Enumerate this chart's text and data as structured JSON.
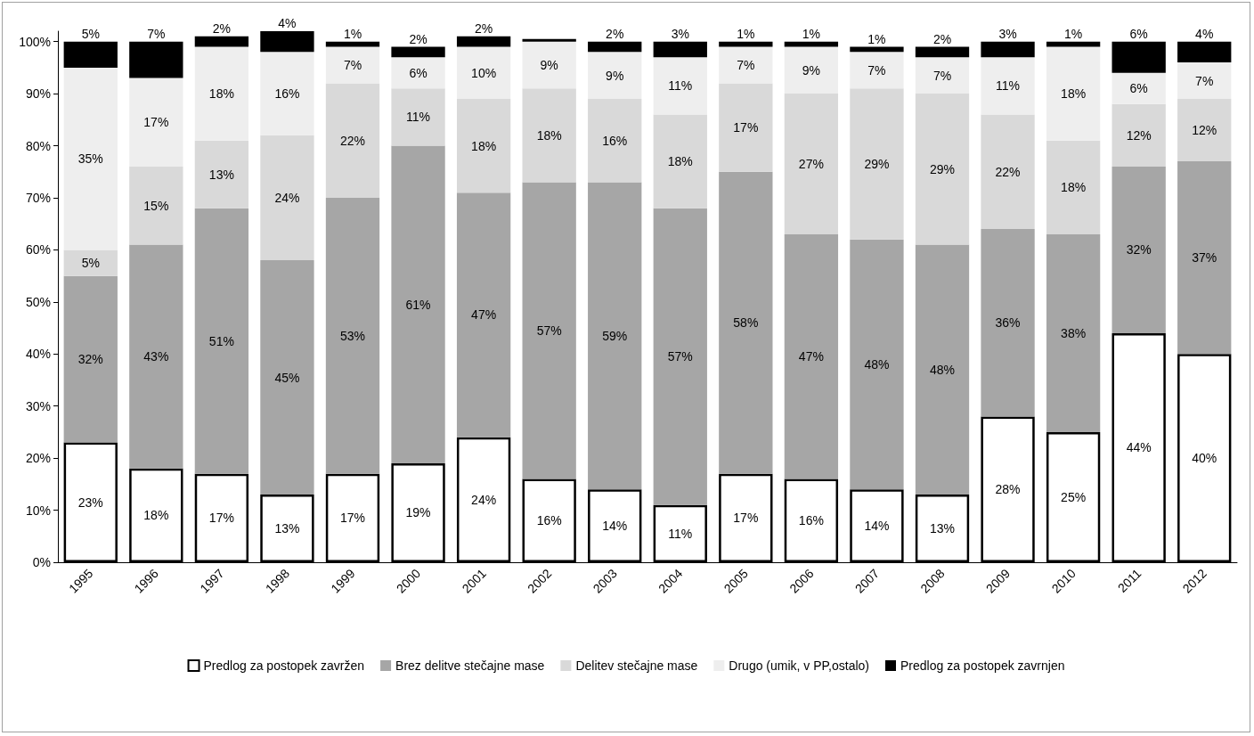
{
  "chart_data": {
    "type": "bar",
    "stacked": true,
    "categories": [
      "1995",
      "1996",
      "1997",
      "1998",
      "1999",
      "2000",
      "2001",
      "2002",
      "2003",
      "2004",
      "2005",
      "2006",
      "2007",
      "2008",
      "2009",
      "2010",
      "2011",
      "2012"
    ],
    "series": [
      {
        "name": "Predlog za postopek zavržen",
        "color": "#ffffff",
        "values": [
          23,
          18,
          17,
          13,
          17,
          19,
          24,
          16,
          14,
          11,
          17,
          16,
          14,
          13,
          28,
          25,
          44,
          40
        ],
        "value_labels": [
          "23%",
          "18%",
          "17%",
          "13%",
          "17%",
          "19%",
          "24%",
          "16%",
          "14%",
          "11%",
          "17%",
          "16%",
          "14%",
          "13%",
          "28%",
          "25%",
          "44%",
          "40%"
        ]
      },
      {
        "name": "Brez delitve stečajne mase",
        "color": "#a6a6a6",
        "values": [
          32,
          43,
          51,
          45,
          53,
          61,
          47,
          57,
          59,
          57,
          58,
          47,
          48,
          48,
          36,
          38,
          32,
          37
        ],
        "value_labels": [
          "32%",
          "43%",
          "51%",
          "45%",
          "53%",
          "61%",
          "47%",
          "57%",
          "59%",
          "57%",
          "58%",
          "47%",
          "48%",
          "48%",
          "36%",
          "38%",
          "32%",
          "37%"
        ]
      },
      {
        "name": "Delitev stečajne mase",
        "color": "#d9d9d9",
        "values": [
          5,
          15,
          13,
          24,
          22,
          11,
          18,
          18,
          16,
          18,
          17,
          27,
          29,
          29,
          22,
          18,
          12,
          12
        ],
        "value_labels": [
          "5%",
          "15%",
          "13%",
          "24%",
          "22%",
          "11%",
          "18%",
          "18%",
          "16%",
          "18%",
          "17%",
          "27%",
          "29%",
          "29%",
          "22%",
          "18%",
          "12%",
          "12%"
        ]
      },
      {
        "name": "Drugo (umik, v PP,ostalo)",
        "color": "#eeeeee",
        "values": [
          35,
          17,
          18,
          16,
          7,
          6,
          10,
          9,
          9,
          11,
          7,
          9,
          7,
          7,
          11,
          18,
          6,
          7
        ],
        "value_labels": [
          "35%",
          "17%",
          "18%",
          "16%",
          "7%",
          "6%",
          "10%",
          "9%",
          "9%",
          "11%",
          "7%",
          "9%",
          "7%",
          "7%",
          "11%",
          "18%",
          "6%",
          "7%"
        ]
      },
      {
        "name": "Predlog za postopek zavrnjen",
        "color": "#000000",
        "values": [
          5,
          7,
          2,
          4,
          1,
          2,
          2,
          0.5,
          2,
          3,
          1,
          1,
          1,
          2,
          3,
          1,
          6,
          4
        ],
        "value_labels": [
          "5%",
          "7%",
          "2%",
          "4%",
          "1%",
          "2%",
          "2%",
          null,
          "2%",
          "3%",
          "1%",
          "1%",
          "1%",
          "2%",
          "3%",
          "1%",
          "6%",
          "4%"
        ]
      }
    ],
    "ylim": [
      0,
      102
    ],
    "yticks": [
      {
        "value": 0,
        "label": "0%"
      },
      {
        "value": 10,
        "label": "10%"
      },
      {
        "value": 20,
        "label": "20%"
      },
      {
        "value": 30,
        "label": "30%"
      },
      {
        "value": 40,
        "label": "40%"
      },
      {
        "value": 50,
        "label": "50%"
      },
      {
        "value": 60,
        "label": "60%"
      },
      {
        "value": 70,
        "label": "70%"
      },
      {
        "value": 80,
        "label": "80%"
      },
      {
        "value": 90,
        "label": "90%"
      },
      {
        "value": 100,
        "label": "100%"
      }
    ],
    "grid": false,
    "legend": "bottom"
  }
}
